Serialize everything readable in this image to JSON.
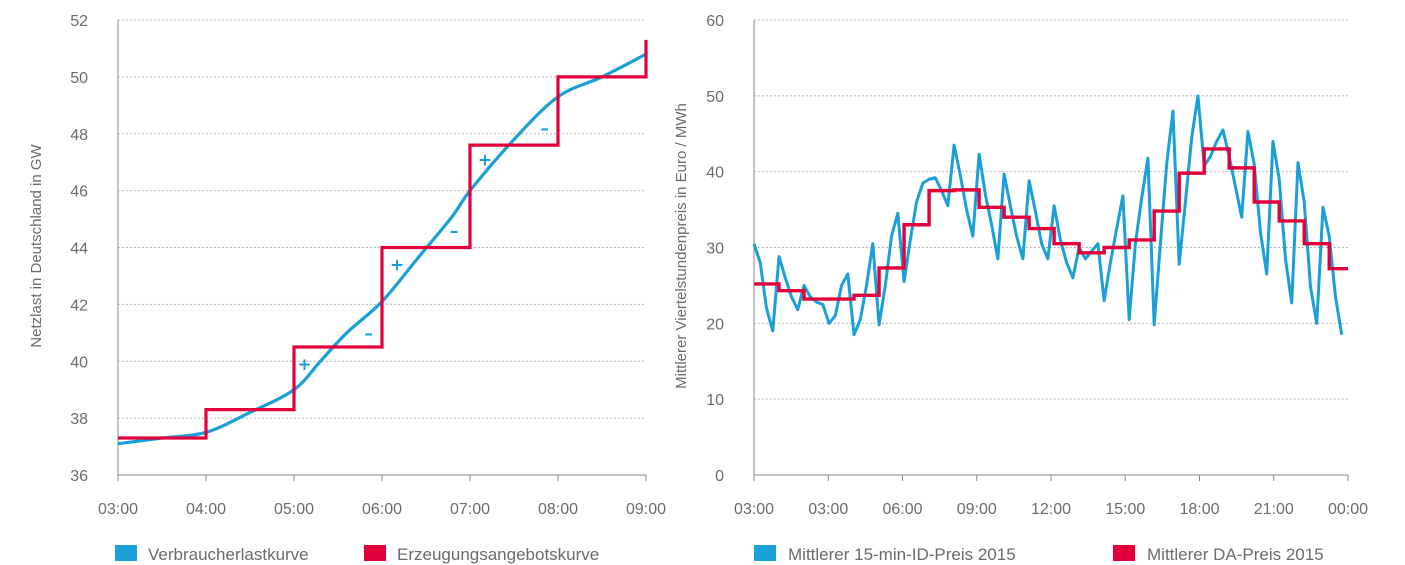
{
  "colors": {
    "blue": "#1a9fd6",
    "red": "#e2003c",
    "axis": "#888888",
    "grid": "#9a9a9a",
    "text": "#6b6b6b"
  },
  "chart_data": [
    {
      "type": "line",
      "title": "",
      "xlabel": "",
      "ylabel": "Netzlast in Deutschland in GW",
      "ylim": [
        36,
        52
      ],
      "yticks": [
        36,
        38,
        40,
        42,
        44,
        46,
        48,
        50,
        52
      ],
      "xlim": [
        3,
        9
      ],
      "xtick_labels": [
        "03:00",
        "04:00",
        "05:00",
        "06:00",
        "07:00",
        "08:00",
        "09:00"
      ],
      "grid": "horizontal dotted",
      "legend_position": "bottom",
      "series": [
        {
          "name": "Verbraucherlastkurve",
          "kind": "smooth",
          "color": "#1a9fd6",
          "x": [
            3.0,
            3.5,
            4.0,
            4.5,
            5.0,
            5.3,
            5.6,
            6.0,
            6.4,
            6.8,
            7.0,
            7.5,
            8.0,
            8.5,
            9.0
          ],
          "y": [
            37.1,
            37.3,
            37.5,
            38.2,
            39.0,
            40.0,
            41.0,
            42.1,
            43.6,
            45.1,
            46.0,
            47.8,
            49.3,
            50.0,
            50.8
          ]
        },
        {
          "name": "Erzeugungsangebotskurve",
          "kind": "step",
          "color": "#e2003c",
          "steps": [
            {
              "x0": 3.0,
              "x1": 4.0,
              "y": 37.3
            },
            {
              "x0": 4.0,
              "x1": 5.0,
              "y": 38.3
            },
            {
              "x0": 5.0,
              "x1": 6.0,
              "y": 40.5
            },
            {
              "x0": 6.0,
              "x1": 7.0,
              "y": 44.0
            },
            {
              "x0": 7.0,
              "x1": 8.0,
              "y": 47.6
            },
            {
              "x0": 8.0,
              "x1": 9.0,
              "y": 50.0
            }
          ],
          "end_y": 51.3
        }
      ],
      "annotations": [
        {
          "text": "+",
          "x": 5.12,
          "y": 39.9
        },
        {
          "text": "–",
          "x": 5.85,
          "y": 41.0
        },
        {
          "text": "+",
          "x": 6.17,
          "y": 43.4
        },
        {
          "text": "–",
          "x": 6.82,
          "y": 44.6
        },
        {
          "text": "+",
          "x": 7.17,
          "y": 47.1
        },
        {
          "text": "–",
          "x": 7.85,
          "y": 48.2
        }
      ]
    },
    {
      "type": "line",
      "title": "",
      "xlabel": "",
      "ylabel": "Mittlerer Viertelstundenpreis in Euro / MWh",
      "ylim": [
        0,
        60
      ],
      "yticks": [
        0,
        10,
        20,
        30,
        40,
        50,
        60
      ],
      "xlim": [
        0,
        95
      ],
      "xtick_labels": [
        "03:00",
        "03:00",
        "06:00",
        "09:00",
        "12:00",
        "15:00",
        "18:00",
        "21:00",
        "00:00"
      ],
      "grid": "horizontal dotted",
      "legend_position": "bottom",
      "series": [
        {
          "name": "Mittlerer 15-min-ID-Preis 2015",
          "kind": "line",
          "color": "#1a9fd6",
          "values": [
            30.5,
            28.0,
            22.0,
            19.0,
            28.8,
            26.0,
            23.5,
            21.8,
            25.0,
            23.5,
            22.8,
            22.5,
            20.0,
            21.0,
            25.0,
            26.5,
            18.5,
            20.5,
            25.0,
            30.5,
            19.8,
            25.0,
            31.5,
            34.5,
            25.5,
            31.0,
            36.0,
            38.5,
            39.0,
            39.2,
            37.5,
            35.5,
            43.5,
            39.5,
            35.0,
            31.5,
            42.3,
            37.0,
            33.0,
            28.5,
            39.7,
            35.5,
            31.5,
            28.5,
            38.8,
            34.8,
            30.5,
            28.5,
            35.5,
            31.0,
            28.0,
            26.0,
            30.0,
            28.5,
            29.5,
            30.5,
            23.0,
            28.0,
            32.5,
            36.8,
            20.5,
            30.5,
            36.5,
            41.8,
            19.8,
            30.5,
            41.0,
            48.0,
            27.8,
            36.0,
            44.5,
            50.0,
            40.8,
            42.0,
            44.0,
            45.5,
            42.0,
            38.0,
            34.0,
            45.3,
            41.0,
            32.0,
            26.5,
            44.0,
            39.0,
            28.5,
            22.7,
            41.2,
            36.0,
            24.8,
            20.0,
            35.3,
            31.5,
            23.5,
            18.5
          ]
        },
        {
          "name": "Mittlerer DA-Preis 2015",
          "kind": "step",
          "color": "#e2003c",
          "values": [
            25.2,
            24.3,
            23.2,
            23.2,
            23.7,
            27.3,
            33.0,
            37.5,
            37.6,
            35.3,
            34.0,
            32.5,
            30.5,
            29.3,
            30.0,
            31.0,
            34.8,
            39.8,
            43.0,
            40.5,
            36.0,
            33.5,
            30.5,
            27.2
          ],
          "end_y": 27.2
        }
      ]
    }
  ]
}
